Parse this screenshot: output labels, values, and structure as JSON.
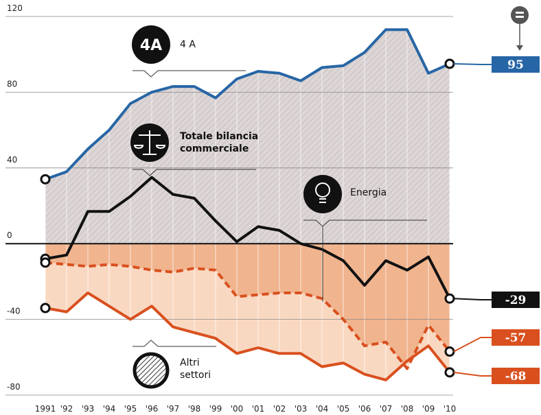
{
  "chart_data": {
    "type": "line",
    "categories": [
      "1991",
      "'92",
      "'93",
      "'94",
      "'95",
      "'96",
      "'97",
      "'98",
      "'99",
      "'00",
      "'01",
      "'02",
      "'03",
      "'04",
      "'05",
      "'06",
      "'07",
      "'08",
      "'09",
      "'10"
    ],
    "ylim": [
      -80,
      120
    ],
    "yticks": [
      -80,
      -40,
      0,
      40,
      80,
      120
    ],
    "grid": true,
    "series": [
      {
        "name": "4 A",
        "icon": "4A",
        "color": "#2766a6",
        "values": [
          34,
          38,
          50,
          60,
          74,
          80,
          83,
          83,
          77,
          87,
          91,
          90,
          86,
          93,
          94,
          101,
          113,
          113,
          90,
          95
        ]
      },
      {
        "name": "Totale bilancia commerciale",
        "color": "#111111",
        "values": [
          -8,
          -6,
          17,
          17,
          25,
          35,
          26,
          24,
          12,
          1,
          9,
          7,
          0,
          -3,
          -9,
          -22,
          -9,
          -14,
          -7,
          -29
        ]
      },
      {
        "name": "Energia",
        "color": "#d9501e",
        "dashed": true,
        "values": [
          -10,
          -11,
          -12,
          -11,
          -12,
          -14,
          -15,
          -13,
          -14,
          -28,
          -27,
          -26,
          -26,
          -29,
          -40,
          -54,
          -52,
          -66,
          -43,
          -57
        ]
      },
      {
        "name": "Altri settori",
        "color": "#d9501e",
        "values": [
          -34,
          -36,
          -26,
          -33,
          -40,
          -33,
          -44,
          -47,
          -50,
          -58,
          -55,
          -58,
          -58,
          -65,
          -63,
          -69,
          -72,
          -62,
          -54,
          -68
        ]
      }
    ]
  }
}
